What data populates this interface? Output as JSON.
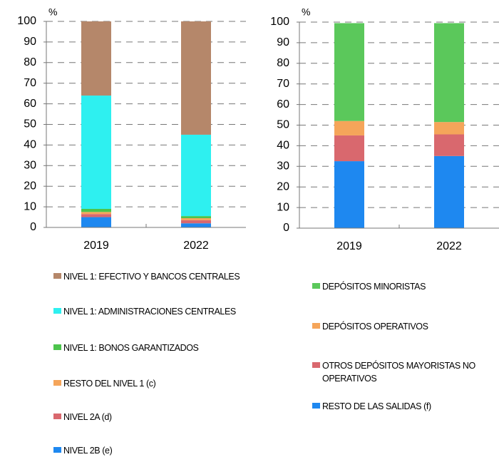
{
  "chart_data": [
    {
      "type": "bar",
      "stacked": true,
      "unit_label": "%",
      "categories": [
        "2019",
        "2022"
      ],
      "series": [
        {
          "name": "NIVEL 2B (e)",
          "color": "#1e88f0",
          "values": [
            5,
            2
          ]
        },
        {
          "name": "NIVEL 2A (d)",
          "color": "#d9686e",
          "values": [
            1.5,
            1.5
          ]
        },
        {
          "name": "RESTO DEL NIVEL 1 (c)",
          "color": "#f5a55a",
          "values": [
            1,
            1
          ]
        },
        {
          "name": "NIVEL 1: BONOS GARANTIZADOS",
          "color": "#4cc44c",
          "values": [
            1.5,
            1
          ]
        },
        {
          "name": "NIVEL 1: ADMINISTRACIONES CENTRALES",
          "color": "#2ef0f0",
          "values": [
            55,
            39.5
          ]
        },
        {
          "name": "NIVEL 1: EFECTIVO Y BANCOS CENTRALES",
          "color": "#b5876a",
          "values": [
            36,
            55
          ]
        }
      ],
      "ylim": [
        0,
        100
      ],
      "yticks": [
        0,
        10,
        20,
        30,
        40,
        50,
        60,
        70,
        80,
        90,
        100
      ],
      "grid": true
    },
    {
      "type": "bar",
      "stacked": true,
      "unit_label": "%",
      "categories": [
        "2019",
        "2022"
      ],
      "series": [
        {
          "name": "RESTO DE LAS SALIDAS (f)",
          "color": "#1e88f0",
          "values": [
            32.5,
            35
          ]
        },
        {
          "name": "OTROS DEPÓSITOS MAYORISTAS NO OPERATIVOS",
          "color": "#d9686e",
          "values": [
            12.5,
            10.5
          ]
        },
        {
          "name": "DEPÓSITOS OPERATIVOS",
          "color": "#f5a55a",
          "values": [
            7,
            6
          ]
        },
        {
          "name": "DEPÓSITOS MINORISTAS",
          "color": "#5bc85b",
          "values": [
            47.5,
            48
          ]
        }
      ],
      "ylim": [
        0,
        100
      ],
      "yticks": [
        0,
        10,
        20,
        30,
        40,
        50,
        60,
        70,
        80,
        90,
        100
      ],
      "grid": true
    }
  ]
}
